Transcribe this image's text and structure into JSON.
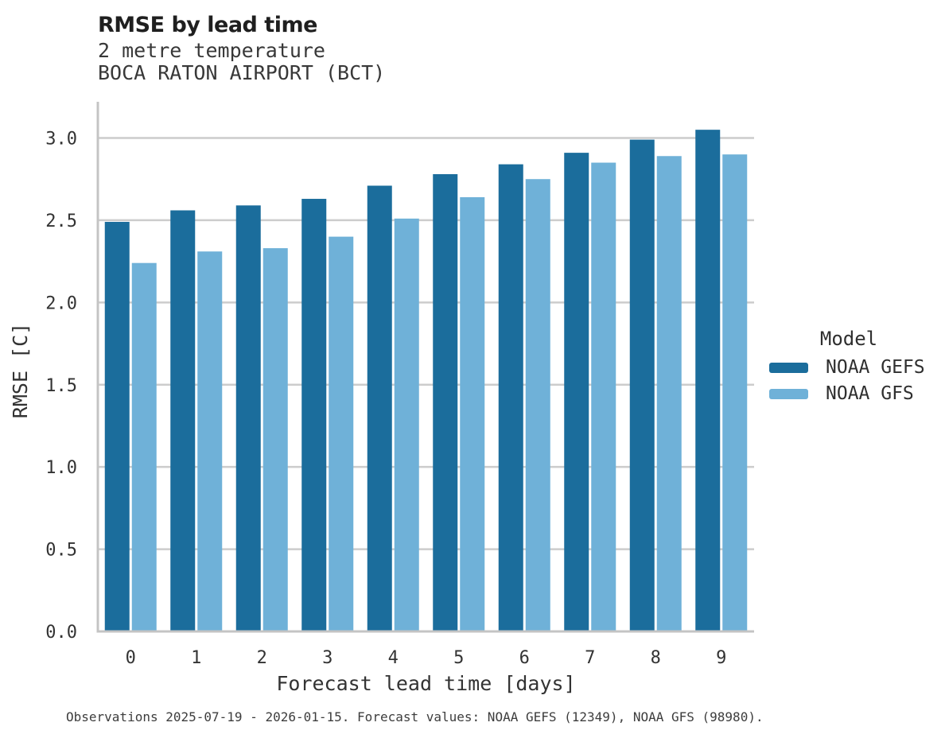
{
  "chart_data": {
    "type": "bar",
    "title": "RMSE by lead time",
    "subtitle_variable": "2 metre temperature",
    "subtitle_station": "BOCA RATON AIRPORT (BCT)",
    "xlabel": "Forecast lead time [days]",
    "ylabel": "RMSE [C]",
    "categories": [
      "0",
      "1",
      "2",
      "3",
      "4",
      "5",
      "6",
      "7",
      "8",
      "9"
    ],
    "series": [
      {
        "name": "NOAA GEFS",
        "color": "#1b6d9c",
        "values": [
          2.49,
          2.56,
          2.59,
          2.63,
          2.71,
          2.78,
          2.84,
          2.91,
          2.99,
          3.05
        ]
      },
      {
        "name": "NOAA GFS",
        "color": "#6fb1d8",
        "values": [
          2.24,
          2.31,
          2.33,
          2.4,
          2.51,
          2.64,
          2.75,
          2.85,
          2.89,
          2.9
        ]
      }
    ],
    "ylim": [
      0,
      3.22
    ],
    "yticks": [
      0.0,
      0.5,
      1.0,
      1.5,
      2.0,
      2.5,
      3.0
    ],
    "grid": true,
    "legend": {
      "title": "Model",
      "position": "right"
    },
    "footnote": "Observations 2025-07-19 - 2026-01-15. Forecast values: NOAA GEFS (12349), NOAA GFS (98980)."
  },
  "colors": {
    "grid": "#cccccc",
    "axis": "#c4c4c4",
    "tick_text": "#333333",
    "title_text": "#1f1f1f",
    "subtitle_text": "#383838",
    "footnote_text": "#3d3d3d"
  }
}
